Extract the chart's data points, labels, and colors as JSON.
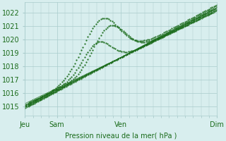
{
  "title": "",
  "xlabel": "Pression niveau de la mer( hPa )",
  "ylabel": "",
  "bg_color": "#d8eeee",
  "grid_color": "#aacccc",
  "line_color": "#1a6b1a",
  "ylim": [
    1014.3,
    1022.8
  ],
  "yticks": [
    1015,
    1016,
    1017,
    1018,
    1019,
    1020,
    1021,
    1022
  ],
  "xlim": [
    0,
    96
  ],
  "xtick_positions": [
    0,
    16,
    48,
    96
  ],
  "xtick_labels": [
    "Jeu",
    "Sam",
    "Ven",
    "Dim"
  ],
  "font_color": "#1a6b1a",
  "font_size": 7
}
